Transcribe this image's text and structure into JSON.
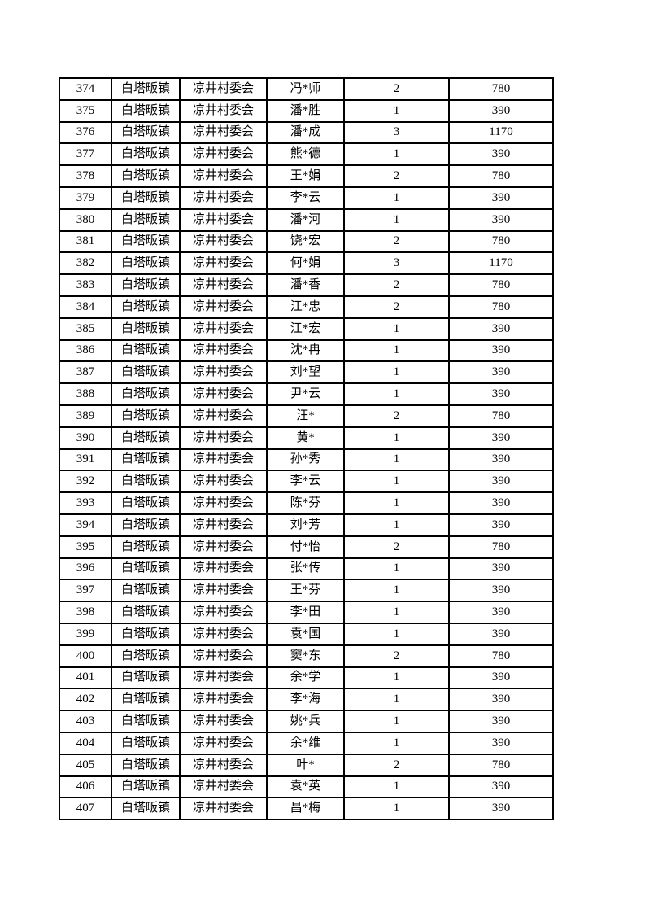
{
  "table": {
    "rows": [
      [
        "374",
        "白塔畈镇",
        "凉井村委会",
        "冯*师",
        "2",
        "780"
      ],
      [
        "375",
        "白塔畈镇",
        "凉井村委会",
        "潘*胜",
        "1",
        "390"
      ],
      [
        "376",
        "白塔畈镇",
        "凉井村委会",
        "潘*成",
        "3",
        "1170"
      ],
      [
        "377",
        "白塔畈镇",
        "凉井村委会",
        "熊*德",
        "1",
        "390"
      ],
      [
        "378",
        "白塔畈镇",
        "凉井村委会",
        "王*娟",
        "2",
        "780"
      ],
      [
        "379",
        "白塔畈镇",
        "凉井村委会",
        "李*云",
        "1",
        "390"
      ],
      [
        "380",
        "白塔畈镇",
        "凉井村委会",
        "潘*河",
        "1",
        "390"
      ],
      [
        "381",
        "白塔畈镇",
        "凉井村委会",
        "饶*宏",
        "2",
        "780"
      ],
      [
        "382",
        "白塔畈镇",
        "凉井村委会",
        "何*娟",
        "3",
        "1170"
      ],
      [
        "383",
        "白塔畈镇",
        "凉井村委会",
        "潘*香",
        "2",
        "780"
      ],
      [
        "384",
        "白塔畈镇",
        "凉井村委会",
        "江*忠",
        "2",
        "780"
      ],
      [
        "385",
        "白塔畈镇",
        "凉井村委会",
        "江*宏",
        "1",
        "390"
      ],
      [
        "386",
        "白塔畈镇",
        "凉井村委会",
        "沈*冉",
        "1",
        "390"
      ],
      [
        "387",
        "白塔畈镇",
        "凉井村委会",
        "刘*望",
        "1",
        "390"
      ],
      [
        "388",
        "白塔畈镇",
        "凉井村委会",
        "尹*云",
        "1",
        "390"
      ],
      [
        "389",
        "白塔畈镇",
        "凉井村委会",
        "汪*",
        "2",
        "780"
      ],
      [
        "390",
        "白塔畈镇",
        "凉井村委会",
        "黄*",
        "1",
        "390"
      ],
      [
        "391",
        "白塔畈镇",
        "凉井村委会",
        "孙*秀",
        "1",
        "390"
      ],
      [
        "392",
        "白塔畈镇",
        "凉井村委会",
        "李*云",
        "1",
        "390"
      ],
      [
        "393",
        "白塔畈镇",
        "凉井村委会",
        "陈*芬",
        "1",
        "390"
      ],
      [
        "394",
        "白塔畈镇",
        "凉井村委会",
        "刘*芳",
        "1",
        "390"
      ],
      [
        "395",
        "白塔畈镇",
        "凉井村委会",
        "付*怡",
        "2",
        "780"
      ],
      [
        "396",
        "白塔畈镇",
        "凉井村委会",
        "张*传",
        "1",
        "390"
      ],
      [
        "397",
        "白塔畈镇",
        "凉井村委会",
        "王*芬",
        "1",
        "390"
      ],
      [
        "398",
        "白塔畈镇",
        "凉井村委会",
        "李*田",
        "1",
        "390"
      ],
      [
        "399",
        "白塔畈镇",
        "凉井村委会",
        "袁*国",
        "1",
        "390"
      ],
      [
        "400",
        "白塔畈镇",
        "凉井村委会",
        "窦*东",
        "2",
        "780"
      ],
      [
        "401",
        "白塔畈镇",
        "凉井村委会",
        "余*学",
        "1",
        "390"
      ],
      [
        "402",
        "白塔畈镇",
        "凉井村委会",
        "李*海",
        "1",
        "390"
      ],
      [
        "403",
        "白塔畈镇",
        "凉井村委会",
        "姚*兵",
        "1",
        "390"
      ],
      [
        "404",
        "白塔畈镇",
        "凉井村委会",
        "余*维",
        "1",
        "390"
      ],
      [
        "405",
        "白塔畈镇",
        "凉井村委会",
        "叶*",
        "2",
        "780"
      ],
      [
        "406",
        "白塔畈镇",
        "凉井村委会",
        "袁*英",
        "1",
        "390"
      ],
      [
        "407",
        "白塔畈镇",
        "凉井村委会",
        "昌*梅",
        "1",
        "390"
      ]
    ],
    "colors": {
      "border": "#000000",
      "text": "#000000",
      "page_background": "#ffffff"
    }
  }
}
